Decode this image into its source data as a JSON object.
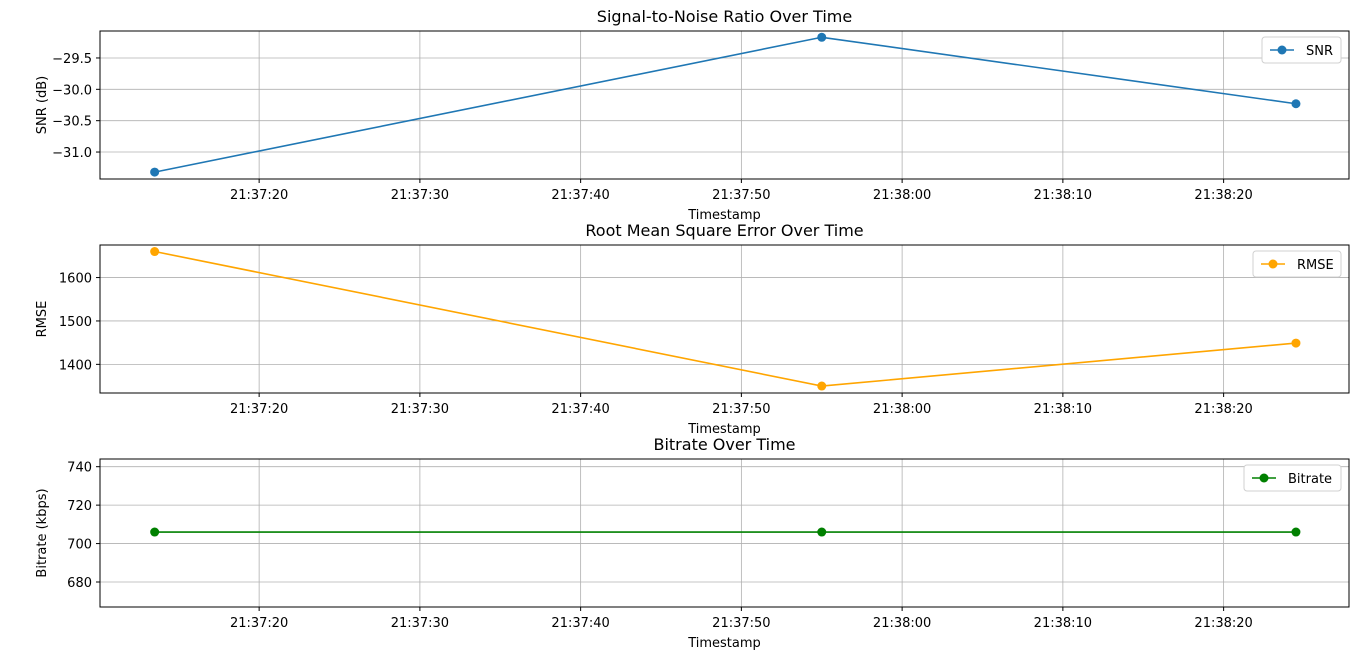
{
  "chart_data": [
    {
      "type": "line",
      "title": "Signal-to-Noise Ratio Over Time",
      "xlabel": "Timestamp",
      "ylabel": "SNR (dB)",
      "x": [
        "21:37:13.5",
        "21:37:55",
        "21:38:24.5"
      ],
      "xlim": [
        "21:37:10.1",
        "21:38:27.8"
      ],
      "x_ticks": [
        "21:37:20",
        "21:37:30",
        "21:37:40",
        "21:37:50",
        "21:38:00",
        "21:38:10",
        "21:38:20"
      ],
      "ylim": [
        -31.43,
        -29.07
      ],
      "y_ticks": [
        -31.0,
        -30.5,
        -30.0,
        -29.5
      ],
      "y_tick_labels": [
        "−31.0",
        "−30.5",
        "−30.0",
        "−29.5"
      ],
      "series": [
        {
          "name": "SNR",
          "values": [
            -31.32,
            -29.17,
            -30.23
          ],
          "color": "#1f77b4"
        }
      ],
      "legend": "top-right",
      "grid": true
    },
    {
      "type": "line",
      "title": "Root Mean Square Error Over Time",
      "xlabel": "Timestamp",
      "ylabel": "RMSE",
      "x": [
        "21:37:13.5",
        "21:37:55",
        "21:38:24.5"
      ],
      "xlim": [
        "21:37:10.1",
        "21:38:27.8"
      ],
      "x_ticks": [
        "21:37:20",
        "21:37:30",
        "21:37:40",
        "21:37:50",
        "21:38:00",
        "21:38:10",
        "21:38:20"
      ],
      "ylim": [
        1334,
        1675
      ],
      "y_ticks": [
        1400,
        1500,
        1600
      ],
      "y_tick_labels": [
        "1400",
        "1500",
        "1600"
      ],
      "series": [
        {
          "name": "RMSE",
          "values": [
            1660,
            1350,
            1449
          ],
          "color": "#ffa500"
        }
      ],
      "legend": "top-right",
      "grid": true
    },
    {
      "type": "line",
      "title": "Bitrate Over Time",
      "xlabel": "Timestamp",
      "ylabel": "Bitrate (kbps)",
      "x": [
        "21:37:13.5",
        "21:37:55",
        "21:38:24.5"
      ],
      "xlim": [
        "21:37:10.1",
        "21:38:27.8"
      ],
      "x_ticks": [
        "21:37:20",
        "21:37:30",
        "21:37:40",
        "21:37:50",
        "21:38:00",
        "21:38:10",
        "21:38:20"
      ],
      "ylim": [
        667,
        744
      ],
      "y_ticks": [
        680,
        700,
        720,
        740
      ],
      "y_tick_labels": [
        "680",
        "700",
        "720",
        "740"
      ],
      "series": [
        {
          "name": "Bitrate",
          "values": [
            706,
            706,
            706
          ],
          "color": "#008000"
        }
      ],
      "legend": "top-right",
      "grid": true
    }
  ]
}
